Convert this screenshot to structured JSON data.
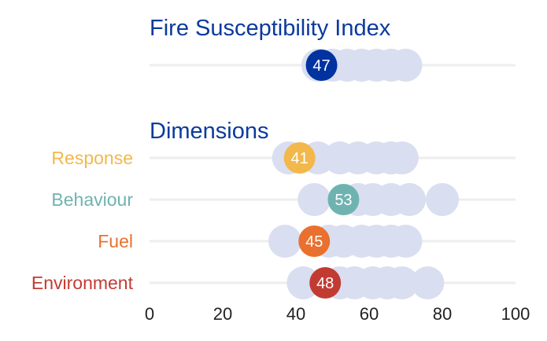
{
  "chart_data": {
    "type": "scatter",
    "title": "Fire Susceptibility Index",
    "section_title": "Dimensions",
    "xlim": [
      0,
      100
    ],
    "xticks": [
      0,
      20,
      40,
      60,
      80,
      100
    ],
    "grid": true,
    "colors": {
      "title": "#0b3a9e",
      "background_dots": "#d9def0",
      "gridline": "#eeeeee"
    },
    "index": {
      "label": "",
      "value": 47,
      "value_label": "47",
      "color": "#0033a0",
      "others": [
        46,
        50,
        54,
        58,
        62,
        66,
        70
      ]
    },
    "dimensions": [
      {
        "label": "Response",
        "value": 41,
        "value_label": "41",
        "color": "#f2b84b",
        "others": [
          38,
          46,
          52,
          57,
          62,
          66,
          69
        ]
      },
      {
        "label": "Behaviour",
        "value": 53,
        "value_label": "53",
        "color": "#6fb3b1",
        "others": [
          45,
          57,
          61,
          66,
          71,
          80
        ]
      },
      {
        "label": "Fuel",
        "value": 45,
        "value_label": "45",
        "color": "#e9702e",
        "others": [
          37,
          49,
          53,
          58,
          62,
          66,
          70
        ]
      },
      {
        "label": "Environment",
        "value": 48,
        "value_label": "48",
        "color": "#c23b33",
        "others": [
          42,
          52,
          56,
          61,
          65,
          69,
          76
        ]
      }
    ]
  }
}
